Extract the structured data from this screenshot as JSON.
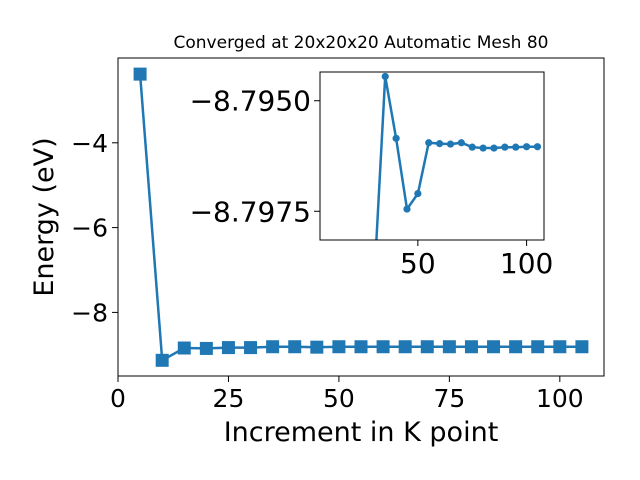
{
  "chart_data": [
    {
      "type": "line",
      "title": "Converged at 20x20x20 Automatic Mesh 80",
      "xlabel": "Increment in K point",
      "ylabel": "Energy (eV)",
      "xlim": [
        0,
        110
      ],
      "ylim": [
        -9.5,
        -2.0
      ],
      "x_ticks": [
        0,
        25,
        50,
        75,
        100
      ],
      "x_tick_labels": [
        "0",
        "25",
        "50",
        "75",
        "100"
      ],
      "y_ticks": [
        -8,
        -6,
        -4
      ],
      "y_tick_labels": [
        "−8",
        "−6",
        "−4"
      ],
      "marker": "square",
      "color": "#1f77b4",
      "series": [
        {
          "x": [
            5,
            10,
            15,
            20,
            25,
            30,
            35,
            40,
            45,
            50,
            55,
            60,
            65,
            70,
            75,
            80,
            85,
            90,
            95,
            100,
            105
          ],
          "values": [
            -2.38,
            -9.13,
            -8.84,
            -8.85,
            -8.83,
            -8.83,
            -8.81,
            -8.81,
            -8.82,
            -8.81,
            -8.81,
            -8.81,
            -8.81,
            -8.81,
            -8.81,
            -8.81,
            -8.81,
            -8.81,
            -8.81,
            -8.81,
            -8.81
          ]
        }
      ]
    },
    {
      "type": "line",
      "title": "",
      "xlabel": "",
      "ylabel": "",
      "xlim": [
        5,
        108
      ],
      "ylim": [
        -8.79435,
        -8.79815
      ],
      "y_axis_inverted": true,
      "x_ticks": [
        50,
        100
      ],
      "x_tick_labels": [
        "50",
        "100"
      ],
      "y_ticks": [
        -8.7975,
        -8.795
      ],
      "y_tick_labels": [
        "−8.7975",
        "−8.7950"
      ],
      "marker": "circle",
      "color": "#1f77b4",
      "series": [
        {
          "x": [
            30,
            35,
            40,
            45,
            50,
            55,
            60,
            65,
            70,
            75,
            80,
            85,
            90,
            95,
            100,
            105
          ],
          "values": [
            -8.799,
            -8.79445,
            -8.79585,
            -8.79745,
            -8.7971,
            -8.79595,
            -8.79597,
            -8.79598,
            -8.79595,
            -8.79605,
            -8.79607,
            -8.79607,
            -8.79605,
            -8.79605,
            -8.79604,
            -8.79604
          ]
        }
      ]
    }
  ]
}
